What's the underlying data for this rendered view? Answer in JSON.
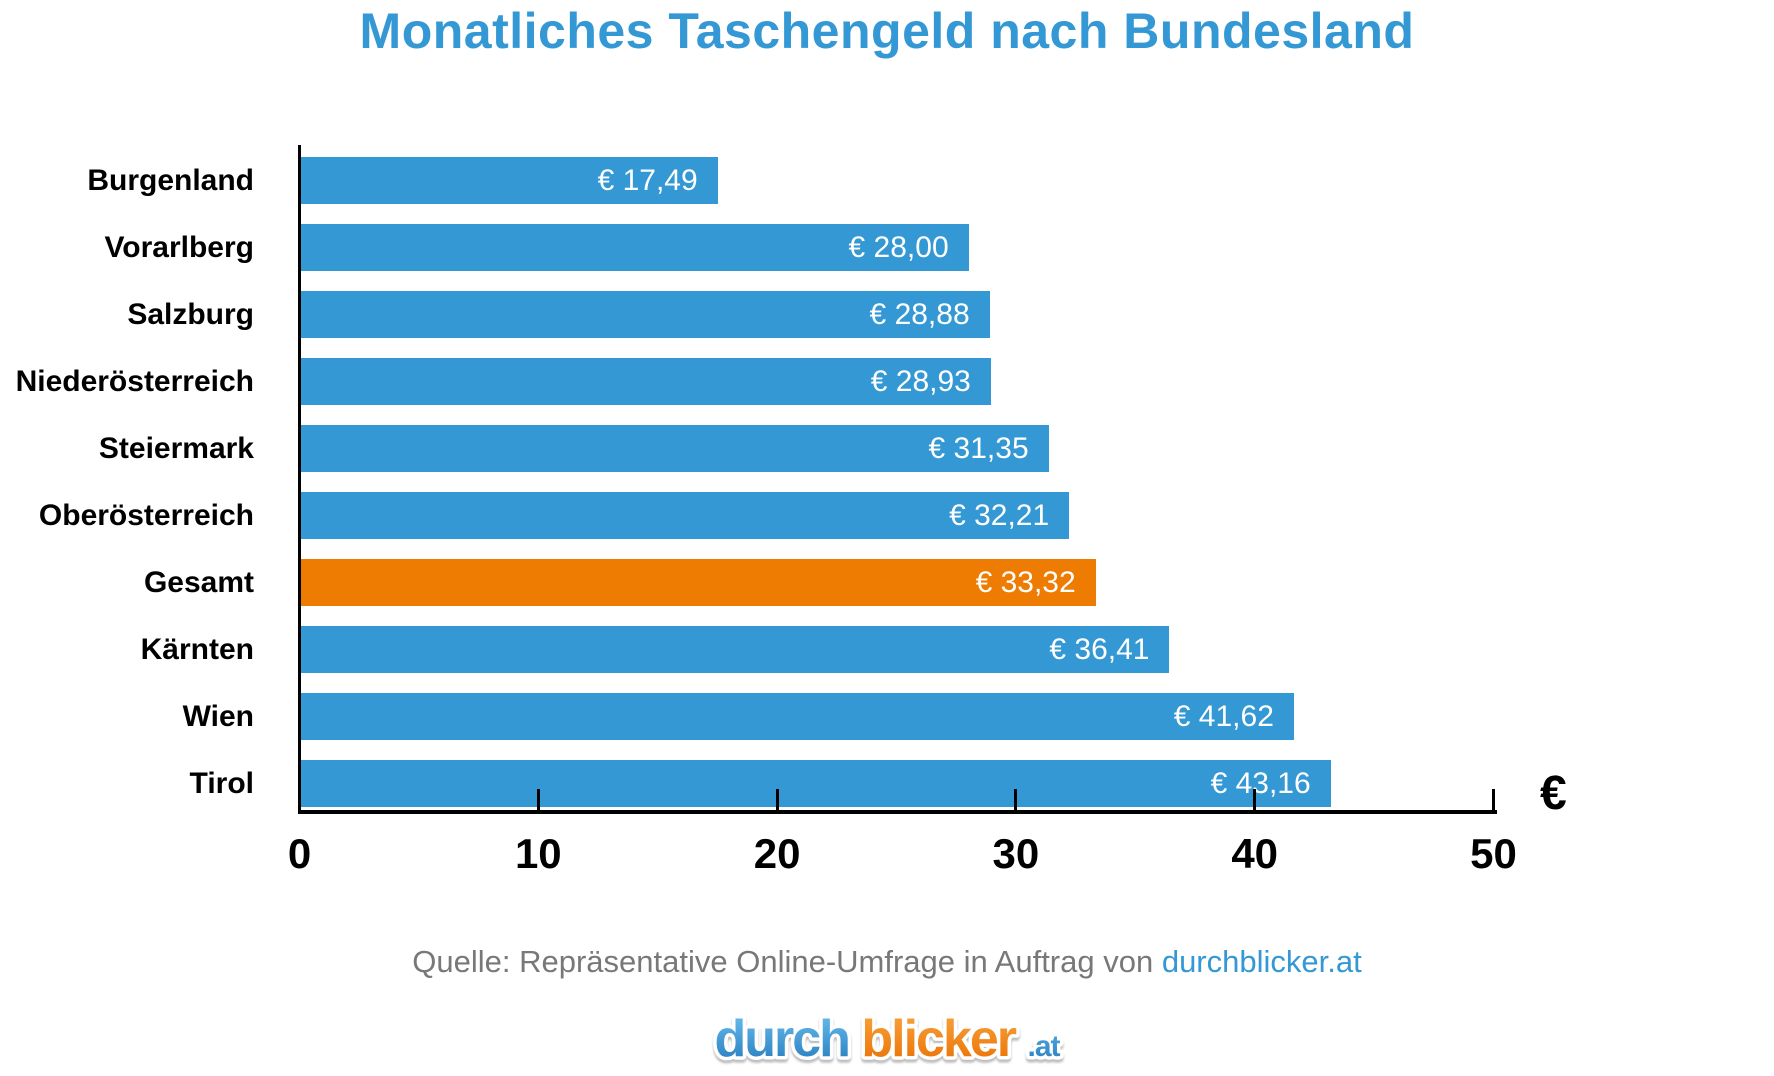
{
  "chart_data": {
    "type": "bar",
    "orientation": "horizontal",
    "title": "Monatliches Taschengeld nach Bundesland",
    "categories": [
      "Burgenland",
      "Vorarlberg",
      "Salzburg",
      "Niederösterreich",
      "Steiermark",
      "Oberösterreich",
      "Gesamt",
      "Kärnten",
      "Wien",
      "Tirol"
    ],
    "values": [
      17.49,
      28.0,
      28.88,
      28.93,
      31.35,
      32.21,
      33.32,
      36.41,
      41.62,
      43.16
    ],
    "value_labels": [
      "€ 17,49",
      "€ 28,00",
      "€ 28,88",
      "€ 28,93",
      "€ 31,35",
      "€ 32,21",
      "€ 33,32",
      "€ 36,41",
      "€ 41,62",
      "€ 43,16"
    ],
    "highlight_category": "Gesamt",
    "xlabel": "",
    "ylabel": "",
    "xlim": [
      0,
      50
    ],
    "x_ticks": [
      0,
      10,
      20,
      30,
      40,
      50
    ],
    "x_unit": "€",
    "grid": false,
    "legend": false,
    "colors": {
      "bar": "#3398d4",
      "highlight": "#ee7c02",
      "value_text": "#ffffff",
      "axis": "#000000"
    }
  },
  "source": {
    "prefix": "Quelle: Repräsentative Online-Umfrage in Auftrag von ",
    "link_text": "durchblicker.at"
  },
  "logo": {
    "part1": "durch",
    "part2": "blicker",
    "part3": ".at",
    "blue_top": "#6cc0ef",
    "blue_bottom": "#2379bd",
    "orange_top": "#f9a53f",
    "orange_bottom": "#e96f00"
  }
}
